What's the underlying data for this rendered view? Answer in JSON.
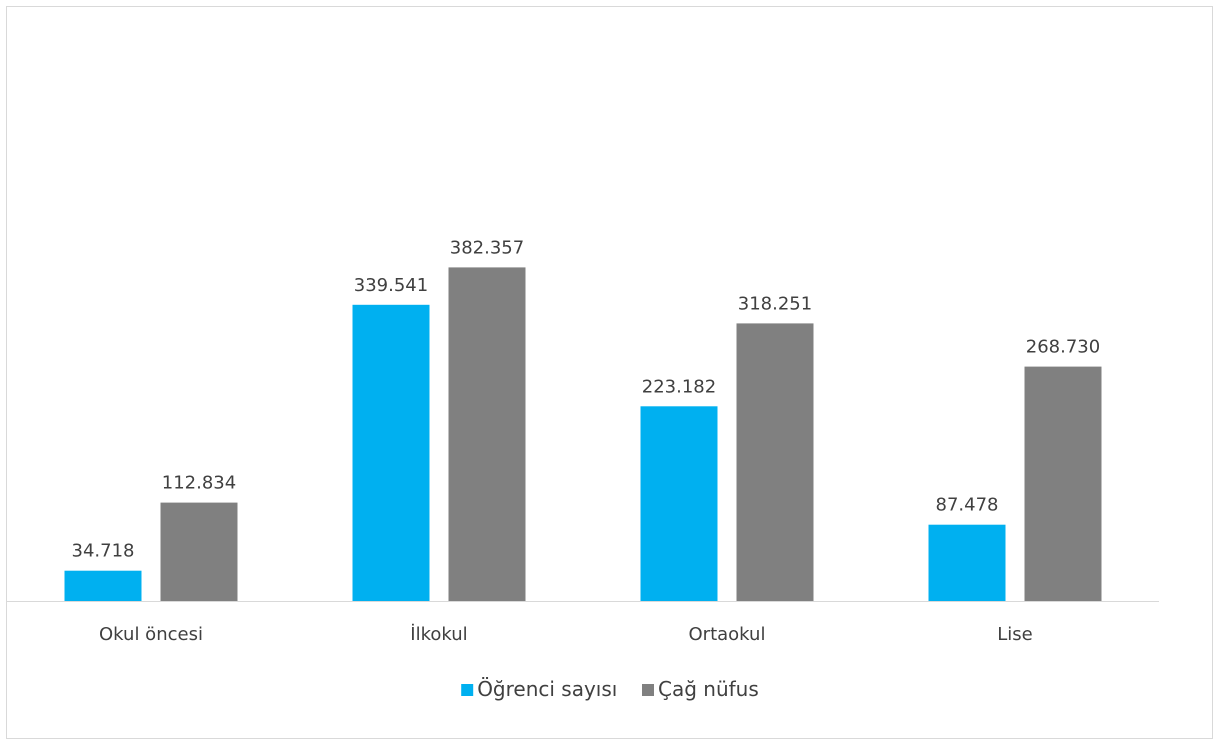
{
  "chart_data": {
    "type": "bar",
    "categories": [
      "Okul öncesi",
      "İlkokul",
      "Ortaokul",
      "Lise"
    ],
    "series": [
      {
        "name": "Öğrenci sayısı",
        "color": "#00B0F0",
        "values": [
          34718,
          339541,
          223182,
          87478
        ],
        "labels": [
          "34.718",
          "339.541",
          "223.182",
          "87.478"
        ]
      },
      {
        "name": "Çağ nüfus",
        "color": "#808080",
        "values": [
          112834,
          382357,
          318251,
          268730
        ],
        "labels": [
          "112.834",
          "382.357",
          "318.251",
          "268.730"
        ]
      }
    ],
    "title": "",
    "xlabel": "",
    "ylabel": "",
    "ylim": [
      0,
      500000
    ],
    "grid": false,
    "legend_position": "bottom"
  }
}
